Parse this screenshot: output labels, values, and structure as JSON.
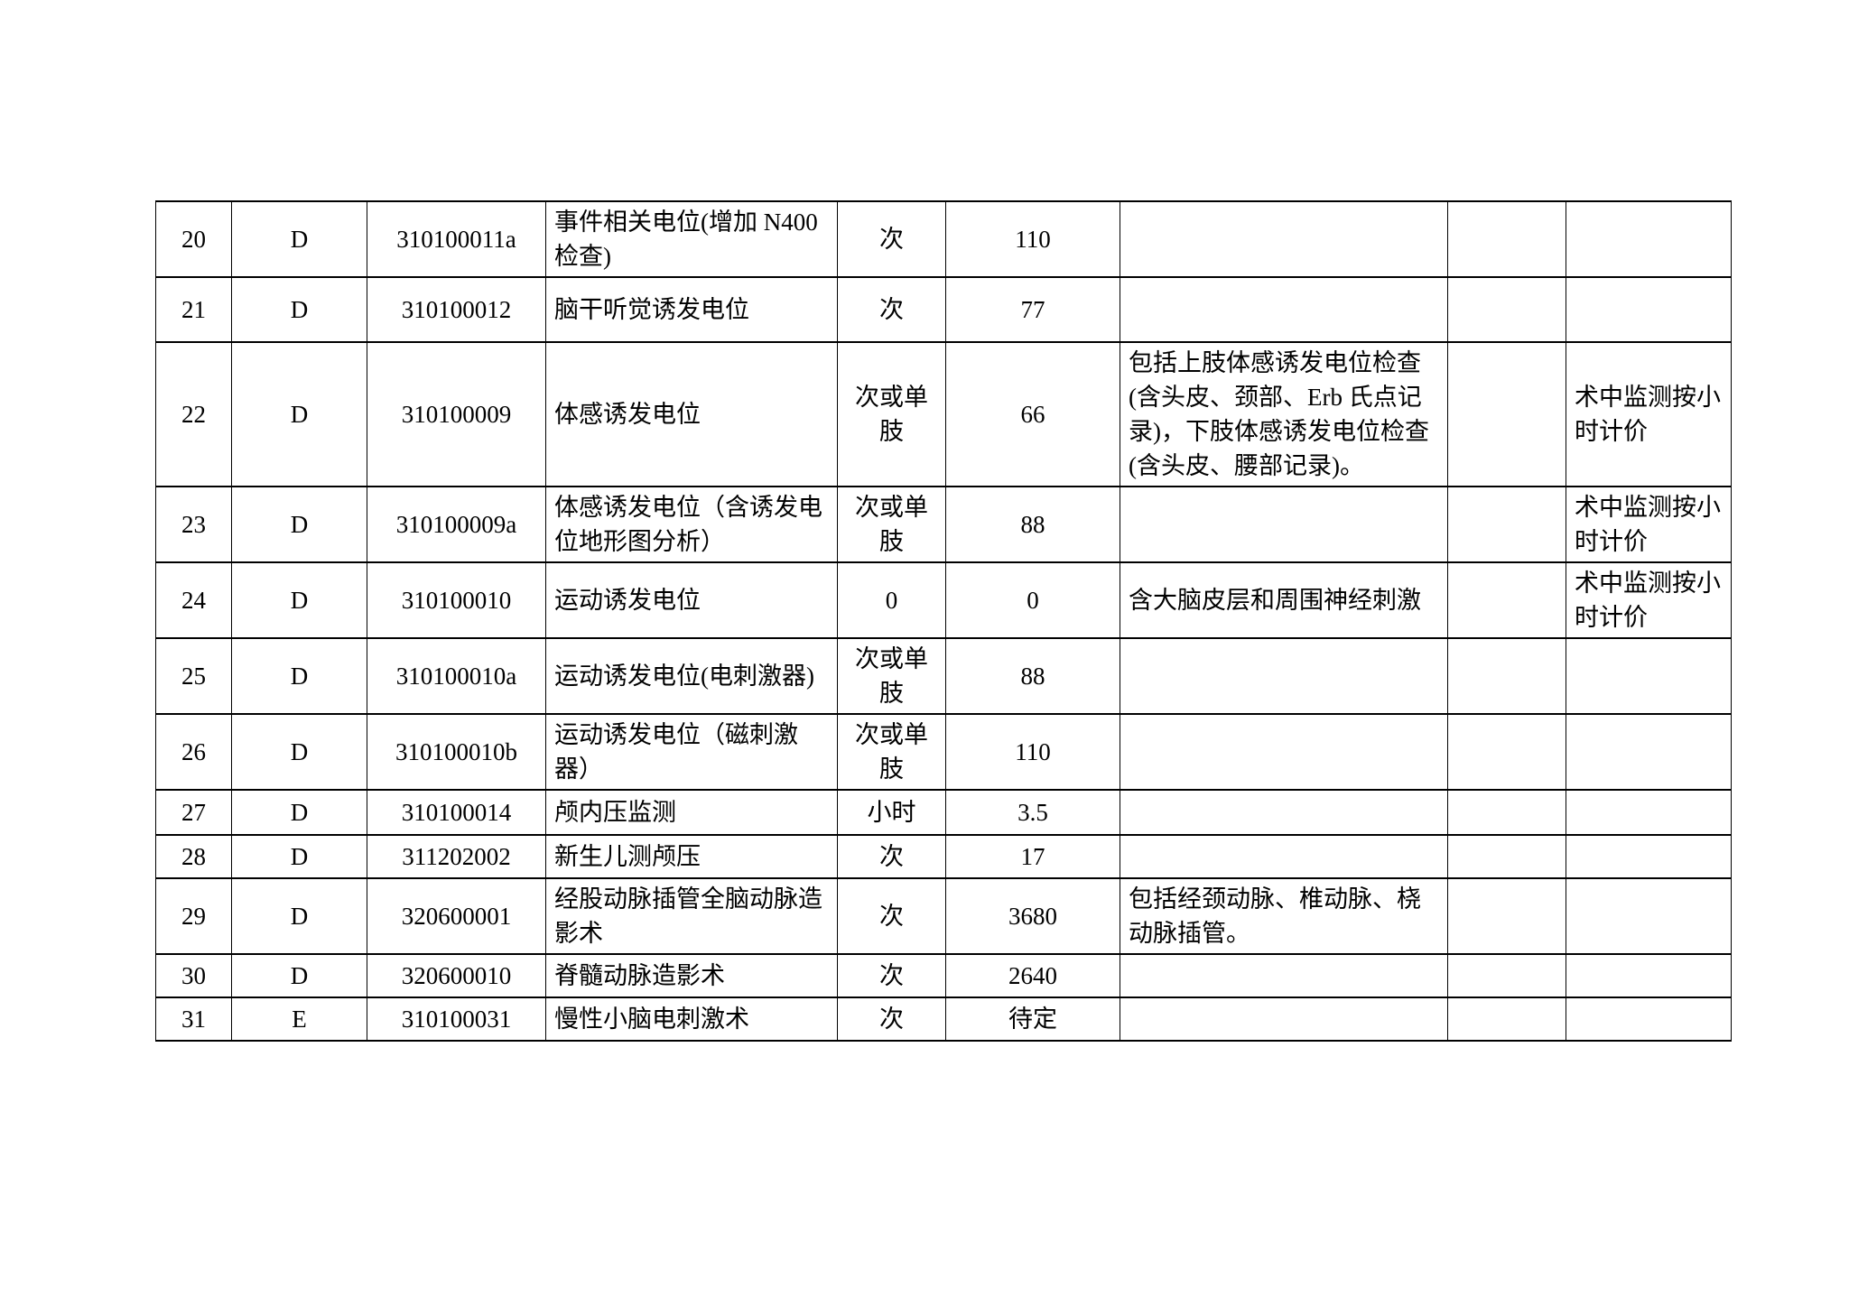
{
  "page": {
    "background_color": "#ffffff",
    "text_color": "#000000",
    "border_color": "#000000",
    "description": "continuation page of a Chinese medical service price list table, rows 20-31, no header row visible"
  },
  "table": {
    "columns": [
      {
        "key": "no",
        "role": "row-number"
      },
      {
        "key": "category",
        "role": "category-letter"
      },
      {
        "key": "code",
        "role": "item-code"
      },
      {
        "key": "name",
        "role": "item-name"
      },
      {
        "key": "unit",
        "role": "pricing-unit"
      },
      {
        "key": "price",
        "role": "price"
      },
      {
        "key": "note",
        "role": "inclusion-note"
      },
      {
        "key": "blank",
        "role": "empty-column"
      },
      {
        "key": "remark",
        "role": "remark"
      }
    ],
    "rows": [
      {
        "no": "20",
        "category": "D",
        "code": "310100011a",
        "name": "事件相关电位(增加 N400 检查)",
        "unit": "次",
        "price": "110",
        "note": "",
        "blank": "",
        "remark": ""
      },
      {
        "no": "21",
        "category": "D",
        "code": "310100012",
        "name": "脑干听觉诱发电位",
        "unit": "次",
        "price": "77",
        "note": "",
        "blank": "",
        "remark": ""
      },
      {
        "no": "22",
        "category": "D",
        "code": "310100009",
        "name": "体感诱发电位",
        "unit": "次或单肢",
        "price": "66",
        "note": "包括上肢体感诱发电位检查(含头皮、颈部、Erb 氏点记录)，下肢体感诱发电位检查(含头皮、腰部记录)。",
        "blank": "",
        "remark": "术中监测按小时计价"
      },
      {
        "no": "23",
        "category": "D",
        "code": "310100009a",
        "name": "体感诱发电位（含诱发电位地形图分析）",
        "unit": "次或单肢",
        "price": "88",
        "note": "",
        "blank": "",
        "remark": "术中监测按小时计价"
      },
      {
        "no": "24",
        "category": "D",
        "code": "310100010",
        "name": "运动诱发电位",
        "unit": "0",
        "price": "0",
        "note": "含大脑皮层和周围神经刺激",
        "blank": "",
        "remark": "术中监测按小时计价"
      },
      {
        "no": "25",
        "category": "D",
        "code": "310100010a",
        "name": "运动诱发电位(电刺激器)",
        "unit": "次或单肢",
        "price": "88",
        "note": "",
        "blank": "",
        "remark": ""
      },
      {
        "no": "26",
        "category": "D",
        "code": "310100010b",
        "name": "运动诱发电位（磁刺激器）",
        "unit": "次或单肢",
        "price": "110",
        "note": "",
        "blank": "",
        "remark": ""
      },
      {
        "no": "27",
        "category": "D",
        "code": "310100014",
        "name": "颅内压监测",
        "unit": "小时",
        "price": "3.5",
        "note": "",
        "blank": "",
        "remark": ""
      },
      {
        "no": "28",
        "category": "D",
        "code": "311202002",
        "name": "新生儿测颅压",
        "unit": "次",
        "price": "17",
        "note": "",
        "blank": "",
        "remark": ""
      },
      {
        "no": "29",
        "category": "D",
        "code": "320600001",
        "name": "经股动脉插管全脑动脉造影术",
        "unit": "次",
        "price": "3680",
        "note": "包括经颈动脉、椎动脉、桡动脉插管。",
        "blank": "",
        "remark": ""
      },
      {
        "no": "30",
        "category": "D",
        "code": "320600010",
        "name": "脊髓动脉造影术",
        "unit": "次",
        "price": "2640",
        "note": "",
        "blank": "",
        "remark": ""
      },
      {
        "no": "31",
        "category": "E",
        "code": "310100031",
        "name": "慢性小脑电刺激术",
        "unit": "次",
        "price": "待定",
        "note": "",
        "blank": "",
        "remark": ""
      }
    ]
  }
}
